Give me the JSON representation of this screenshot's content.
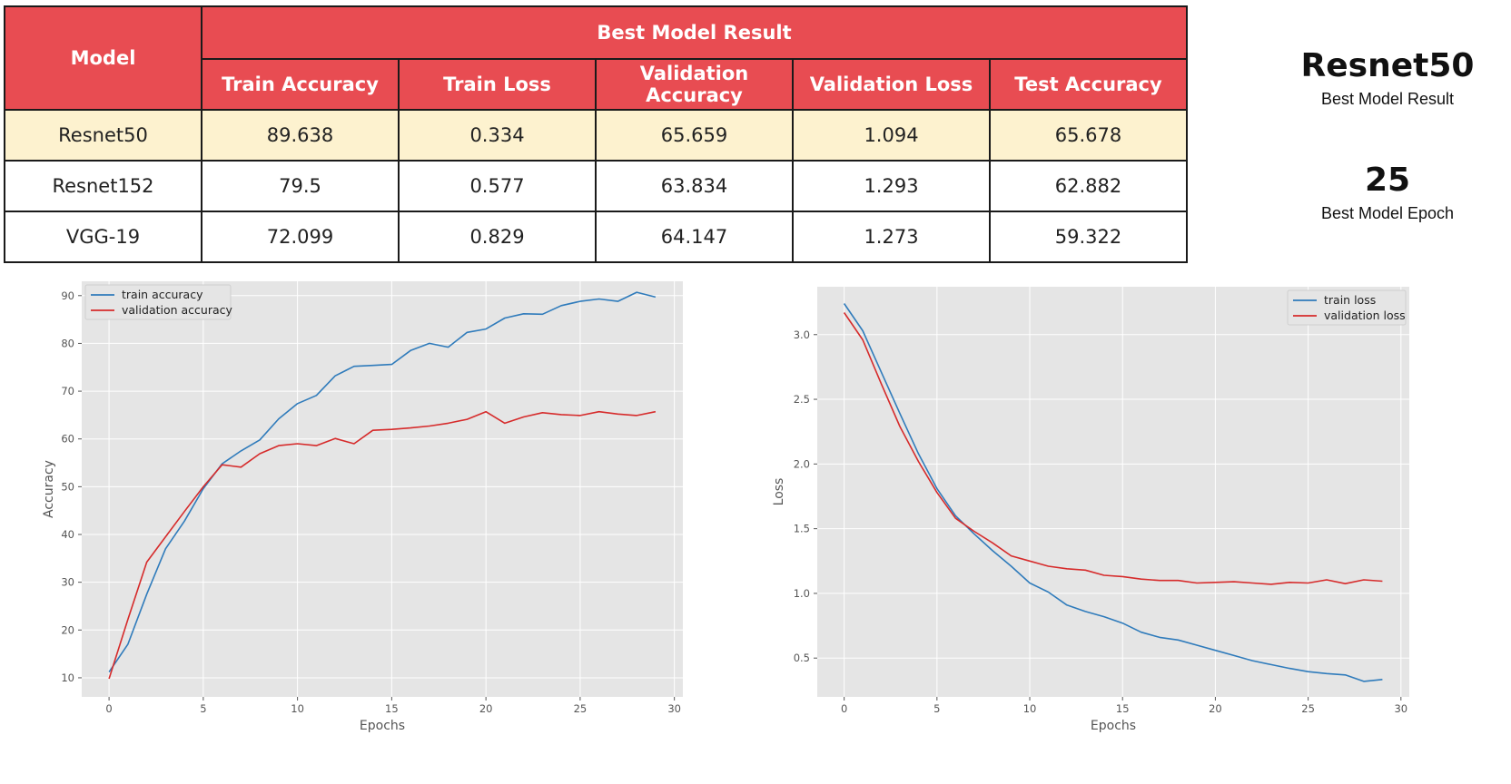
{
  "table": {
    "model_header": "Model",
    "group_header": "Best Model Result",
    "columns": [
      "Train Accuracy",
      "Train Loss",
      "Validation Accuracy",
      "Validation Loss",
      "Test Accuracy"
    ],
    "rows": [
      {
        "model": "Resnet50",
        "values": [
          "89.638",
          "0.334",
          "65.659",
          "1.094",
          "65.678"
        ],
        "highlight": true
      },
      {
        "model": "Resnet152",
        "values": [
          "79.5",
          "0.577",
          "63.834",
          "1.293",
          "62.882"
        ],
        "highlight": false
      },
      {
        "model": "VGG-19",
        "values": [
          "72.099",
          "0.829",
          "64.147",
          "1.273",
          "59.322"
        ],
        "highlight": false
      }
    ],
    "header_color": "#e84c52",
    "highlight_color": "#fdf2cf"
  },
  "summary": {
    "best_model": "Resnet50",
    "best_model_caption": "Best Model Result",
    "best_epoch": "25",
    "best_epoch_caption": "Best Model Epoch"
  },
  "chart_data": [
    {
      "type": "line",
      "xlabel": "Epochs",
      "ylabel": "Accuracy",
      "xlim": [
        -1.45,
        30.45
      ],
      "ylim": [
        6,
        93
      ],
      "xticks": [
        0,
        5,
        10,
        15,
        20,
        25,
        30
      ],
      "yticks": [
        10,
        20,
        30,
        40,
        50,
        60,
        70,
        80,
        90
      ],
      "grid": true,
      "legend": "top-left",
      "x": [
        0,
        1,
        2,
        3,
        4,
        5,
        6,
        7,
        8,
        9,
        10,
        11,
        12,
        13,
        14,
        15,
        16,
        17,
        18,
        19,
        20,
        21,
        22,
        23,
        24,
        25,
        26,
        27,
        28,
        29
      ],
      "series": [
        {
          "name": "train accuracy",
          "color": "#2f7bbb",
          "values": [
            11.2,
            17,
            27.5,
            37,
            42.8,
            49.6,
            54.8,
            57.5,
            59.8,
            64.2,
            67.4,
            69.1,
            73.2,
            75.2,
            75.4,
            75.6,
            78.5,
            80,
            79.2,
            82.3,
            83,
            85.3,
            86.2,
            86.1,
            87.9,
            88.8,
            89.3,
            88.8,
            90.7,
            89.7
          ]
        },
        {
          "name": "validation accuracy",
          "color": "#d62b2b",
          "values": [
            9.8,
            22.2,
            34.2,
            39.5,
            44.8,
            50,
            54.6,
            54.1,
            56.9,
            58.6,
            59,
            58.6,
            60.1,
            59,
            61.8,
            62,
            62.3,
            62.7,
            63.3,
            64.1,
            65.7,
            63.3,
            64.6,
            65.5,
            65.1,
            64.9,
            65.7,
            65.2,
            64.9,
            65.7
          ]
        }
      ]
    },
    {
      "type": "line",
      "xlabel": "Epochs",
      "ylabel": "Loss",
      "xlim": [
        -1.45,
        30.45
      ],
      "ylim": [
        0.2,
        3.37
      ],
      "xticks": [
        0,
        5,
        10,
        15,
        20,
        25,
        30
      ],
      "yticks": [
        0.5,
        1.0,
        1.5,
        2.0,
        2.5,
        3.0
      ],
      "ytick_labels": [
        "0.5",
        "1.0",
        "1.5",
        "2.0",
        "2.5",
        "3.0"
      ],
      "grid": true,
      "legend": "top-right",
      "x": [
        0,
        1,
        2,
        3,
        4,
        5,
        6,
        7,
        8,
        9,
        10,
        11,
        12,
        13,
        14,
        15,
        16,
        17,
        18,
        19,
        20,
        21,
        22,
        23,
        24,
        25,
        26,
        27,
        28,
        29
      ],
      "series": [
        {
          "name": "train loss",
          "color": "#2f7bbb",
          "values": [
            3.24,
            3.03,
            2.71,
            2.39,
            2.08,
            1.81,
            1.6,
            1.46,
            1.33,
            1.21,
            1.08,
            1.01,
            0.91,
            0.86,
            0.82,
            0.77,
            0.7,
            0.66,
            0.64,
            0.6,
            0.56,
            0.52,
            0.48,
            0.45,
            0.42,
            0.395,
            0.38,
            0.37,
            0.32,
            0.335
          ]
        },
        {
          "name": "validation loss",
          "color": "#d62b2b",
          "values": [
            3.17,
            2.96,
            2.62,
            2.29,
            2.02,
            1.78,
            1.58,
            1.48,
            1.39,
            1.29,
            1.25,
            1.21,
            1.19,
            1.18,
            1.14,
            1.13,
            1.11,
            1.1,
            1.1,
            1.08,
            1.085,
            1.09,
            1.08,
            1.07,
            1.085,
            1.08,
            1.105,
            1.075,
            1.105,
            1.094
          ]
        }
      ]
    }
  ]
}
